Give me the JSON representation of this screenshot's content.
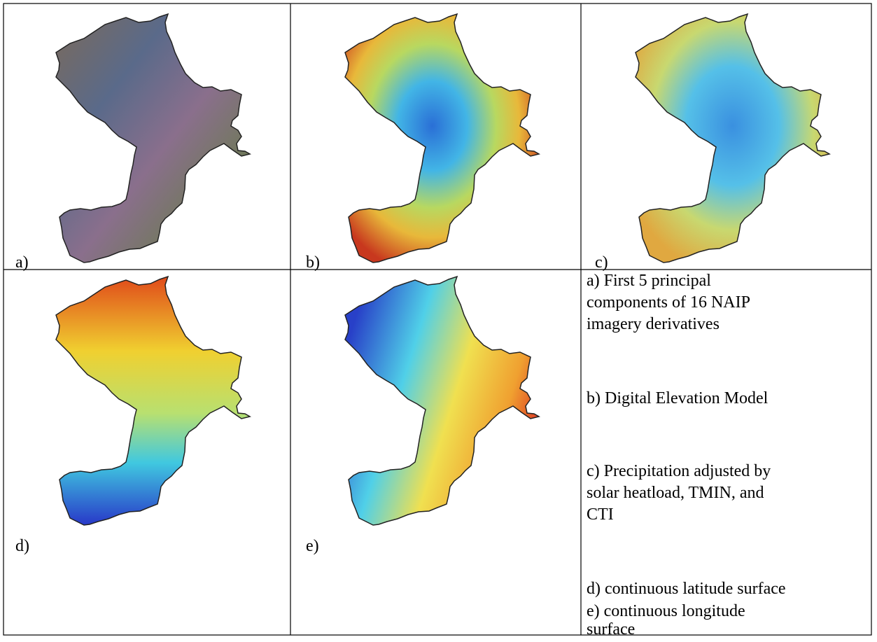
{
  "panels": [
    {
      "label": "a)"
    },
    {
      "label": "b)"
    },
    {
      "label": "c)"
    },
    {
      "label": "d)"
    },
    {
      "label": "e)"
    }
  ],
  "captions": [
    {
      "lines": [
        "a) First 5 principal",
        "components of 16 NAIP",
        "imagery derivatives"
      ]
    },
    {
      "lines": [
        "b) Digital Elevation Model"
      ]
    },
    {
      "lines": [
        "c) Precipitation adjusted by",
        "solar heatload, TMIN, and",
        "CTI"
      ]
    },
    {
      "lines": [
        "d) continuous latitude surface"
      ]
    },
    {
      "lines": [
        "e) continuous longitude",
        "surface"
      ]
    }
  ]
}
